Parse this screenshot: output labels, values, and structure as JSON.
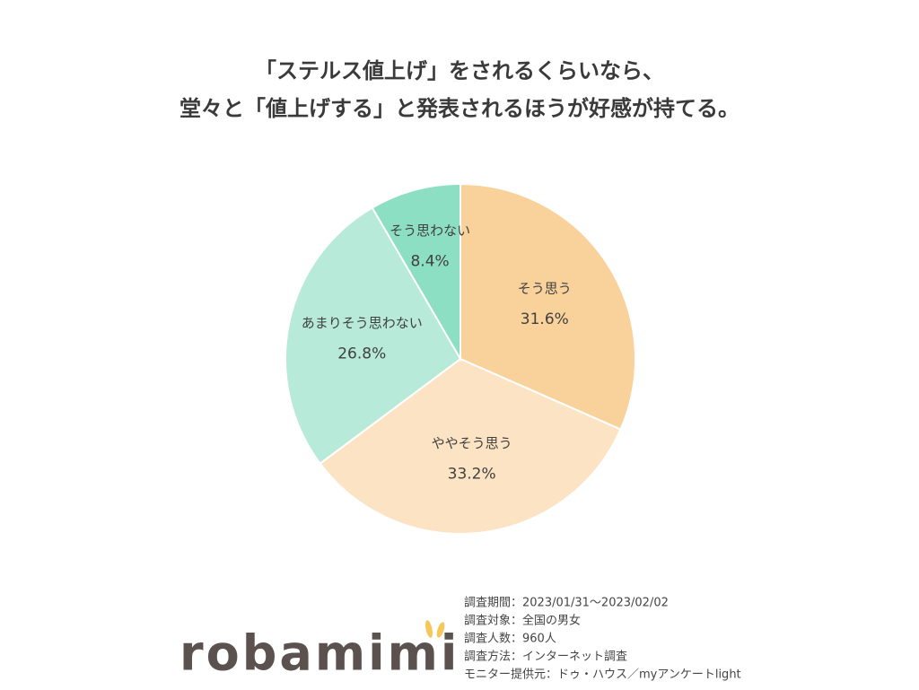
{
  "chart_data": {
    "type": "pie",
    "title": [
      "「ステルス値上げ」をされるくらいなら、",
      "堂々と「値上げする」と発表されるほうが好感が持てる。"
    ],
    "categories": [
      "そう思う",
      "ややそう思う",
      "あまりそう思わない",
      "そう思わない"
    ],
    "values": [
      31.6,
      33.2,
      26.8,
      8.4
    ],
    "value_labels": [
      "31.6%",
      "33.2%",
      "26.8%",
      "8.4%"
    ],
    "colors": [
      "#f9d29b",
      "#fce3c3",
      "#b8ead9",
      "#8ddfc4"
    ]
  },
  "notes": [
    "調査期間：2023/01/31～2023/02/02",
    "調査対象：全国の男女",
    "調査人数：960人",
    "調査方法：インターネット調査",
    "モニター提供元：ドゥ・ハウス／myアンケートlight"
  ],
  "logo": "robamimi"
}
